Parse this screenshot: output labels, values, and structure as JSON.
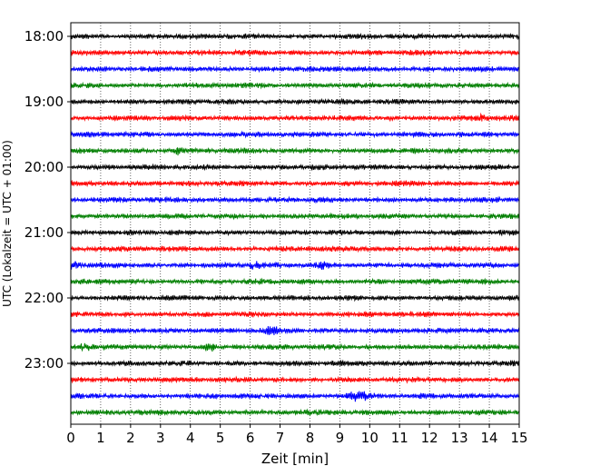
{
  "chart_data": {
    "type": "line",
    "title": "",
    "xlabel": "Zeit  [min]",
    "ylabel": "UTC (Lokalzeit = UTC + 01:00)",
    "xlim": [
      0,
      15
    ],
    "x_ticks": [
      0,
      1,
      2,
      3,
      4,
      5,
      6,
      7,
      8,
      9,
      10,
      11,
      12,
      13,
      14,
      15
    ],
    "x_tick_labels": [
      "0",
      "1",
      "2",
      "3",
      "4",
      "5",
      "6",
      "7",
      "8",
      "9",
      "10",
      "11",
      "12",
      "13",
      "14",
      "15"
    ],
    "y_tick_labels": [
      "18:00",
      "19:00",
      "20:00",
      "21:00",
      "22:00",
      "23:00"
    ],
    "traces_per_hour": 4,
    "trace_start_times": [
      "18:00",
      "18:15",
      "18:30",
      "18:45",
      "19:00",
      "19:15",
      "19:30",
      "19:45",
      "20:00",
      "20:15",
      "20:30",
      "20:45",
      "21:00",
      "21:15",
      "21:30",
      "21:45",
      "22:00",
      "22:15",
      "22:30",
      "22:45",
      "23:00",
      "23:15",
      "23:30",
      "23:45"
    ],
    "trace_colors": [
      "#000000",
      "#ff0000",
      "#0000ff",
      "#007f00"
    ],
    "grid": "vertical dotted lines at each minute",
    "legend": "none",
    "notable_events": [
      {
        "trace": "21:30",
        "x_min": 0.1,
        "note": "large blip"
      },
      {
        "trace": "21:30",
        "x_min": 6.1,
        "note": "burst"
      },
      {
        "trace": "21:30",
        "x_min": 8.4,
        "note": "burst"
      },
      {
        "trace": "22:30",
        "x_min": 6.7,
        "note": "spike"
      },
      {
        "trace": "23:30",
        "x_min": 9.6,
        "note": "largest burst"
      },
      {
        "trace": "19:15",
        "x_min": 13.7,
        "note": "burst"
      },
      {
        "trace": "19:45",
        "x_min": 3.6,
        "note": "burst"
      },
      {
        "trace": "22:45",
        "x_min": 0.5,
        "note": "burst"
      },
      {
        "trace": "22:45",
        "x_min": 4.7,
        "note": "burst"
      }
    ]
  }
}
